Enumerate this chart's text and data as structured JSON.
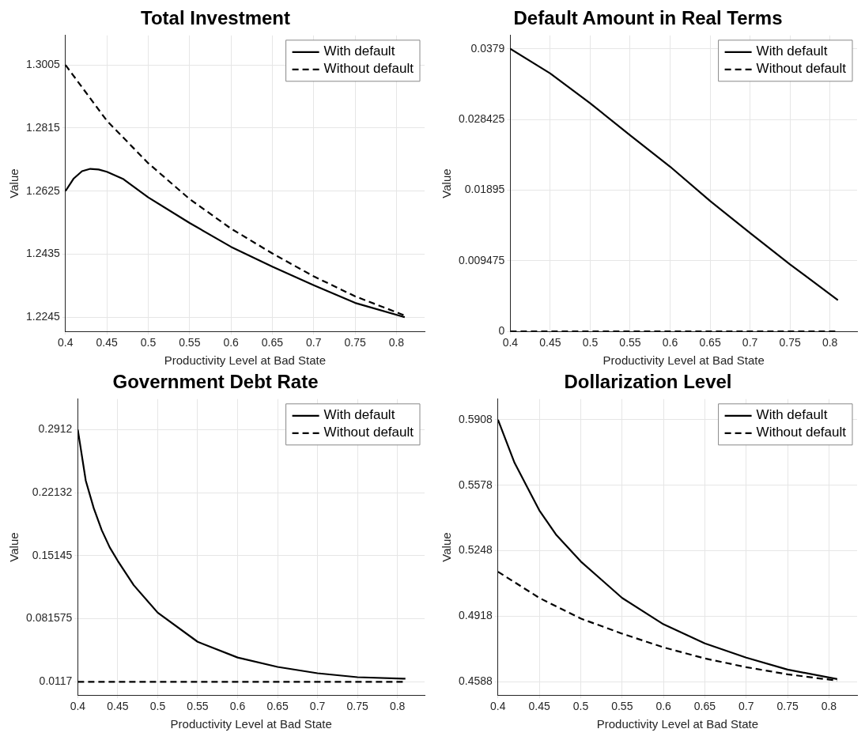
{
  "chart_data": [
    {
      "type": "line",
      "title": "Total Investment",
      "xlabel": "Productivity Level at Bad State",
      "ylabel": "Value",
      "xlim": [
        0.4,
        0.834
      ],
      "xticks": [
        0.4,
        0.45,
        0.5,
        0.55,
        0.6,
        0.65,
        0.7,
        0.75,
        0.8
      ],
      "ylim": [
        1.2202,
        1.3094
      ],
      "yticks": [
        1.2245,
        1.2435,
        1.2625,
        1.2815,
        1.3005
      ],
      "grid": true,
      "legend": "top right",
      "x": [
        0.4,
        0.41,
        0.42,
        0.43,
        0.44,
        0.45,
        0.47,
        0.5,
        0.55,
        0.6,
        0.65,
        0.7,
        0.75,
        0.81
      ],
      "series": [
        {
          "name": "With default",
          "color": "#000000",
          "line_style": "solid",
          "values": [
            1.2625,
            1.2663,
            1.2685,
            1.2692,
            1.269,
            1.2683,
            1.2661,
            1.2606,
            1.2529,
            1.2457,
            1.2397,
            1.2341,
            1.2288,
            1.2245
          ]
        },
        {
          "name": "Without default",
          "color": "#000000",
          "line_style": "dashed",
          "x": [
            0.4,
            0.45,
            0.5,
            0.55,
            0.6,
            0.65,
            0.7,
            0.75,
            0.81
          ],
          "values": [
            1.3005,
            1.2837,
            1.2709,
            1.2601,
            1.2512,
            1.2437,
            1.2368,
            1.2308,
            1.225
          ]
        }
      ]
    },
    {
      "type": "line",
      "title": "Default Amount in Real Terms",
      "xlabel": "Productivity Level at Bad State",
      "ylabel": "Value",
      "xlim": [
        0.4,
        0.834
      ],
      "xticks": [
        0.4,
        0.45,
        0.5,
        0.55,
        0.6,
        0.65,
        0.7,
        0.75,
        0.8
      ],
      "ylim": [
        0,
        0.0397
      ],
      "yticks": [
        0,
        0.009475,
        0.01895,
        0.028425,
        0.0379
      ],
      "grid": true,
      "legend": "top right",
      "x": [
        0.4,
        0.45,
        0.5,
        0.55,
        0.6,
        0.65,
        0.7,
        0.75,
        0.81
      ],
      "series": [
        {
          "name": "With default",
          "color": "#000000",
          "line_style": "solid",
          "values": [
            0.0379,
            0.0346,
            0.0306,
            0.0263,
            0.0221,
            0.0175,
            0.0132,
            0.009,
            0.0042
          ]
        },
        {
          "name": "Without default",
          "color": "#000000",
          "line_style": "dashed",
          "values": [
            0,
            0,
            0,
            0,
            0,
            0,
            0,
            0,
            0
          ]
        }
      ]
    },
    {
      "type": "line",
      "title": "Government Debt Rate",
      "xlabel": "Productivity Level at Bad State",
      "ylabel": "Value",
      "xlim": [
        0.4,
        0.834
      ],
      "xticks": [
        0.4,
        0.45,
        0.5,
        0.55,
        0.6,
        0.65,
        0.7,
        0.75,
        0.8
      ],
      "ylim": [
        -0.0031,
        0.325
      ],
      "yticks": [
        0.0117,
        0.081575,
        0.15145,
        0.22132,
        0.2912
      ],
      "grid": true,
      "legend": "top right",
      "x": [
        0.4,
        0.41,
        0.42,
        0.43,
        0.44,
        0.45,
        0.47,
        0.5,
        0.55,
        0.6,
        0.65,
        0.7,
        0.75,
        0.81
      ],
      "series": [
        {
          "name": "With default",
          "color": "#000000",
          "line_style": "solid",
          "values": [
            0.2912,
            0.2346,
            0.204,
            0.1797,
            0.1606,
            0.1458,
            0.1188,
            0.0883,
            0.056,
            0.0386,
            0.0282,
            0.0212,
            0.0168,
            0.0151
          ]
        },
        {
          "name": "Without default",
          "color": "#000000",
          "line_style": "dashed",
          "values": [
            0.0117,
            0.0117,
            0.0117,
            0.0117,
            0.0117,
            0.0117,
            0.0117,
            0.0117,
            0.0117,
            0.0117,
            0.0117,
            0.0117,
            0.0117,
            0.0117
          ]
        }
      ]
    },
    {
      "type": "line",
      "title": "Dollarization Level",
      "xlabel": "Productivity Level at Bad State",
      "ylabel": "Value",
      "xlim": [
        0.4,
        0.834
      ],
      "xticks": [
        0.4,
        0.45,
        0.5,
        0.55,
        0.6,
        0.65,
        0.7,
        0.75,
        0.8
      ],
      "ylim": [
        0.452,
        0.6012
      ],
      "yticks": [
        0.4588,
        0.4918,
        0.5248,
        0.5578,
        0.5908
      ],
      "grid": true,
      "legend": "top right",
      "x": [
        0.4,
        0.42,
        0.44,
        0.45,
        0.47,
        0.5,
        0.55,
        0.6,
        0.65,
        0.7,
        0.75,
        0.81
      ],
      "series": [
        {
          "name": "With default",
          "color": "#000000",
          "line_style": "solid",
          "values": [
            0.5908,
            0.5691,
            0.5531,
            0.5451,
            0.533,
            0.5194,
            0.501,
            0.4877,
            0.4781,
            0.4709,
            0.4649,
            0.4601
          ]
        },
        {
          "name": "Without default",
          "color": "#000000",
          "line_style": "dashed",
          "x": [
            0.4,
            0.45,
            0.5,
            0.55,
            0.6,
            0.65,
            0.7,
            0.75,
            0.81
          ],
          "values": [
            0.5142,
            0.501,
            0.4906,
            0.483,
            0.4761,
            0.4705,
            0.4661,
            0.4625,
            0.4593
          ]
        }
      ]
    }
  ]
}
